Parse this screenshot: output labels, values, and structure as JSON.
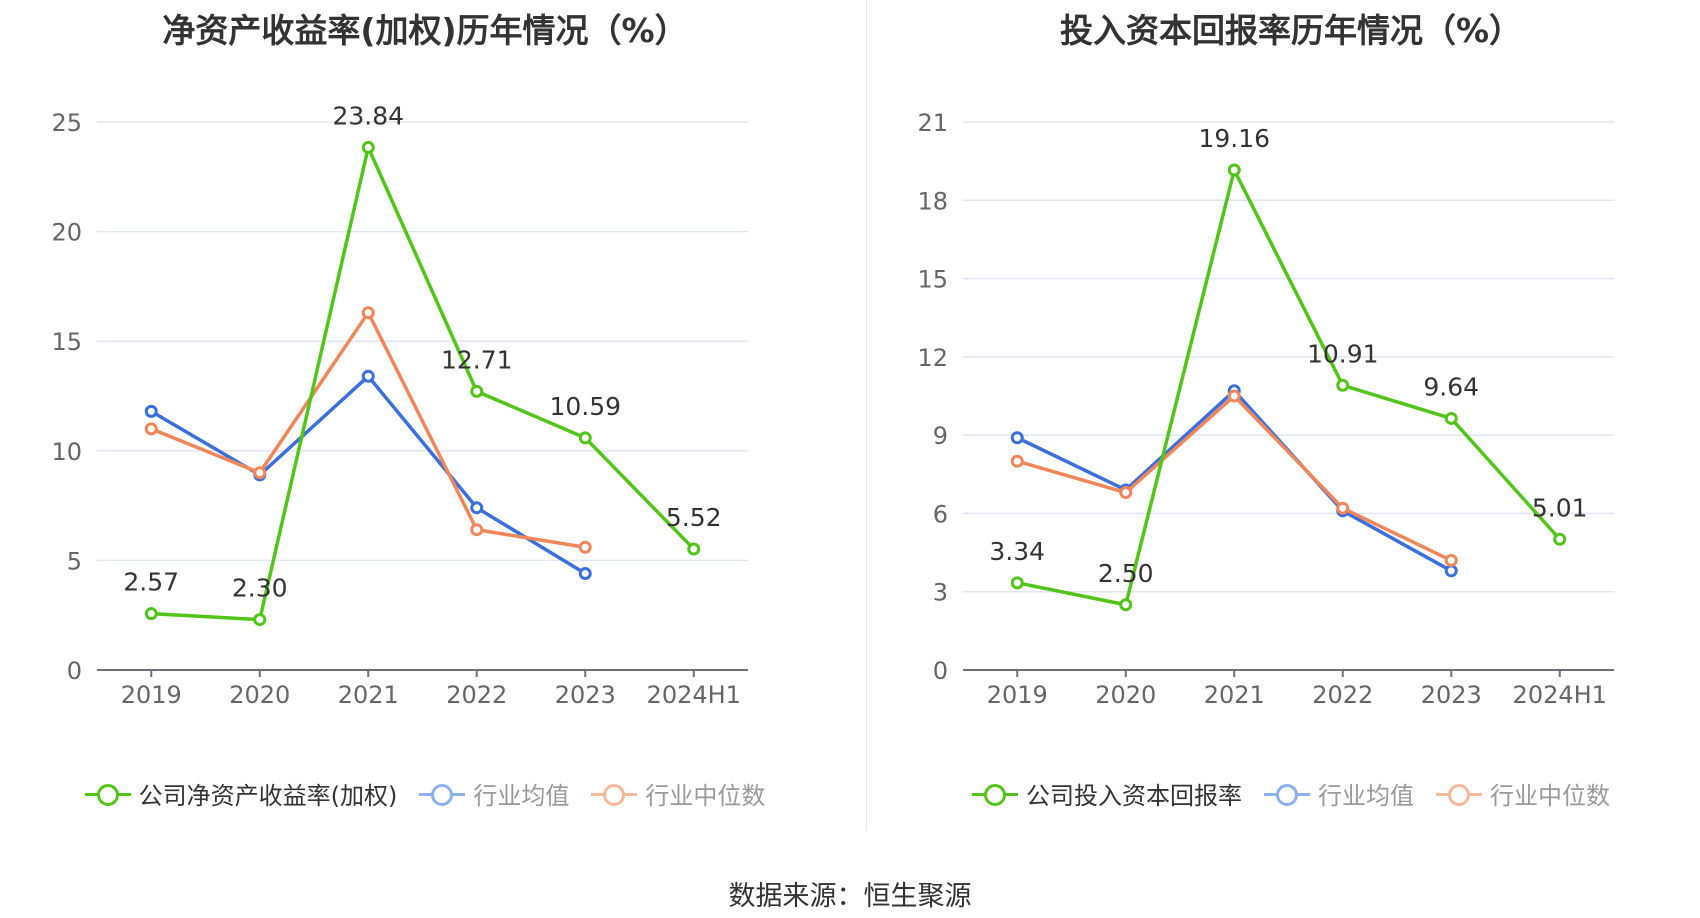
{
  "chart_data": [
    {
      "type": "line",
      "title": "净资产收益率(加权)历年情况（%）",
      "categories": [
        "2019",
        "2020",
        "2021",
        "2022",
        "2023",
        "2024H1"
      ],
      "ylim": [
        0,
        25
      ],
      "yticks": [
        0,
        5,
        10,
        15,
        20,
        25
      ],
      "grid": true,
      "legend_position": "bottom",
      "series": [
        {
          "name": "公司净资产收益率(加权)",
          "color": "#52c41a",
          "values": [
            2.57,
            2.3,
            23.84,
            12.71,
            10.59,
            5.52
          ],
          "labels": [
            "2.57",
            "2.30",
            "23.84",
            "12.71",
            "10.59",
            "5.52"
          ]
        },
        {
          "name": "行业均值",
          "color": "#3b6fdc",
          "values": [
            11.8,
            8.9,
            13.4,
            7.4,
            4.4,
            null
          ]
        },
        {
          "name": "行业中位数",
          "color": "#f0875a",
          "values": [
            11.0,
            9.0,
            16.3,
            6.4,
            5.6,
            null
          ]
        }
      ]
    },
    {
      "type": "line",
      "title": "投入资本回报率历年情况（%）",
      "categories": [
        "2019",
        "2020",
        "2021",
        "2022",
        "2023",
        "2024H1"
      ],
      "ylim": [
        0,
        21
      ],
      "yticks": [
        0,
        3,
        6,
        9,
        12,
        15,
        18,
        21
      ],
      "grid": true,
      "legend_position": "bottom",
      "series": [
        {
          "name": "公司投入资本回报率",
          "color": "#52c41a",
          "values": [
            3.34,
            2.5,
            19.16,
            10.91,
            9.64,
            5.01
          ],
          "labels": [
            "3.34",
            "2.50",
            "19.16",
            "10.91",
            "9.64",
            "5.01"
          ]
        },
        {
          "name": "行业均值",
          "color": "#3b6fdc",
          "values": [
            8.9,
            6.9,
            10.7,
            6.1,
            3.8,
            null
          ]
        },
        {
          "name": "行业中位数",
          "color": "#f0875a",
          "values": [
            8.0,
            6.8,
            10.5,
            6.2,
            4.2,
            null
          ]
        }
      ]
    }
  ],
  "source_text": "数据来源：恒生聚源"
}
